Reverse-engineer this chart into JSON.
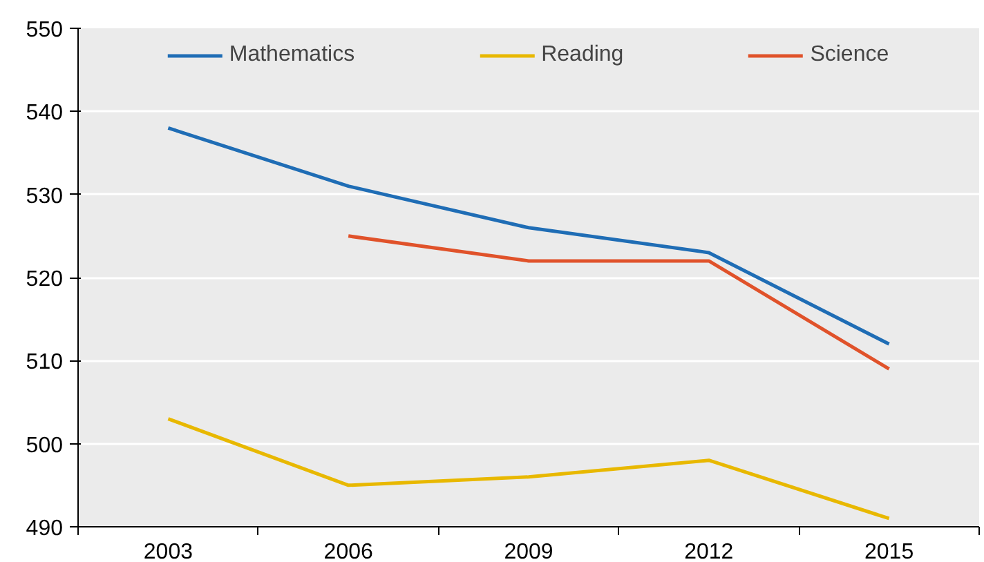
{
  "chart_data": {
    "type": "line",
    "categories": [
      "2003",
      "2006",
      "2009",
      "2012",
      "2015"
    ],
    "series": [
      {
        "name": "Mathematics",
        "color": "#1f6db5",
        "values": [
          538,
          531,
          526,
          523,
          512
        ]
      },
      {
        "name": "Reading",
        "color": "#e8b800",
        "values": [
          503,
          495,
          496,
          498,
          491
        ]
      },
      {
        "name": "Science",
        "color": "#e0522a",
        "values": [
          null,
          525,
          522,
          522,
          509
        ]
      }
    ],
    "ylim": [
      490,
      550
    ],
    "yticks": [
      490,
      500,
      510,
      520,
      530,
      540,
      550
    ],
    "grid": "y",
    "legend": "top",
    "marker": "none",
    "line_style": "solid"
  }
}
